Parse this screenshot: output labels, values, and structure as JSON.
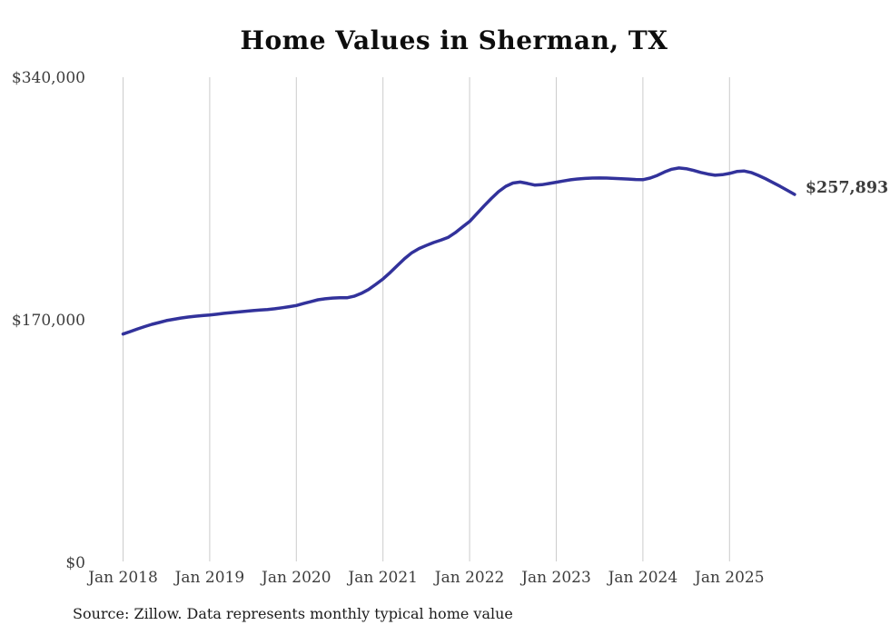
{
  "header": {
    "title": "Home Values in Sherman, TX"
  },
  "footer": {
    "source_note": "Source: Zillow. Data represents monthly typical home value"
  },
  "chart_data": {
    "type": "line",
    "title": "Home Values in Sherman, TX",
    "xlabel": "",
    "ylabel": "",
    "grid": "vertical-only",
    "legend": "none",
    "line_color": "#32329B",
    "grid_color": "#cccccc",
    "ylim": [
      0,
      340000
    ],
    "yticks": [
      {
        "value": 340000,
        "label": "$340,000"
      },
      {
        "value": 170000,
        "label": "$170,000"
      },
      {
        "value": 0,
        "label": "$0"
      }
    ],
    "xticks": [
      {
        "x": "2018-01",
        "label": "Jan 2018"
      },
      {
        "x": "2019-01",
        "label": "Jan 2019"
      },
      {
        "x": "2020-01",
        "label": "Jan 2020"
      },
      {
        "x": "2021-01",
        "label": "Jan 2021"
      },
      {
        "x": "2022-01",
        "label": "Jan 2022"
      },
      {
        "x": "2023-01",
        "label": "Jan 2023"
      },
      {
        "x": "2024-01",
        "label": "Jan 2024"
      },
      {
        "x": "2025-01",
        "label": "Jan 2025"
      }
    ],
    "end_label": "$257,893",
    "end_value": 257893,
    "x": [
      "2018-01",
      "2018-02",
      "2018-03",
      "2018-04",
      "2018-05",
      "2018-06",
      "2018-07",
      "2018-08",
      "2018-09",
      "2018-10",
      "2018-11",
      "2018-12",
      "2019-01",
      "2019-02",
      "2019-03",
      "2019-04",
      "2019-05",
      "2019-06",
      "2019-07",
      "2019-08",
      "2019-09",
      "2019-10",
      "2019-11",
      "2019-12",
      "2020-01",
      "2020-02",
      "2020-03",
      "2020-04",
      "2020-05",
      "2020-06",
      "2020-07",
      "2020-08",
      "2020-09",
      "2020-10",
      "2020-11",
      "2020-12",
      "2021-01",
      "2021-02",
      "2021-03",
      "2021-04",
      "2021-05",
      "2021-06",
      "2021-07",
      "2021-08",
      "2021-09",
      "2021-10",
      "2021-11",
      "2021-12",
      "2022-01",
      "2022-02",
      "2022-03",
      "2022-04",
      "2022-05",
      "2022-06",
      "2022-07",
      "2022-08",
      "2022-09",
      "2022-10",
      "2022-11",
      "2022-12",
      "2023-01",
      "2023-02",
      "2023-03",
      "2023-04",
      "2023-05",
      "2023-06",
      "2023-07",
      "2023-08",
      "2023-09",
      "2023-10",
      "2023-11",
      "2023-12",
      "2024-01",
      "2024-02",
      "2024-03",
      "2024-04",
      "2024-05",
      "2024-06",
      "2024-07",
      "2024-08",
      "2024-09",
      "2024-10",
      "2024-11",
      "2024-12",
      "2025-01",
      "2025-02",
      "2025-03",
      "2025-04",
      "2025-05",
      "2025-06",
      "2025-07",
      "2025-08",
      "2025-09",
      "2025-10"
    ],
    "values": [
      160000,
      161700,
      163600,
      165200,
      166800,
      168100,
      169400,
      170300,
      171200,
      171900,
      172500,
      172900,
      173300,
      173900,
      174500,
      175000,
      175500,
      176000,
      176400,
      176800,
      177200,
      177700,
      178400,
      179200,
      180000,
      181400,
      182700,
      184000,
      184700,
      185200,
      185400,
      185400,
      186500,
      188500,
      191200,
      194800,
      198600,
      203200,
      208100,
      212900,
      217000,
      219900,
      222100,
      224100,
      225800,
      227700,
      231000,
      235000,
      238900,
      244300,
      249800,
      255000,
      259800,
      263500,
      265800,
      266500,
      265600,
      264400,
      264700,
      265500,
      266400,
      267300,
      268100,
      268700,
      269100,
      269300,
      269400,
      269300,
      269100,
      268800,
      268600,
      268300,
      268200,
      269300,
      271200,
      273600,
      275500,
      276400,
      275900,
      274700,
      273300,
      272100,
      271300,
      271700,
      272600,
      273900,
      274300,
      273200,
      271200,
      268800,
      266200,
      263500,
      260700,
      257893
    ]
  }
}
